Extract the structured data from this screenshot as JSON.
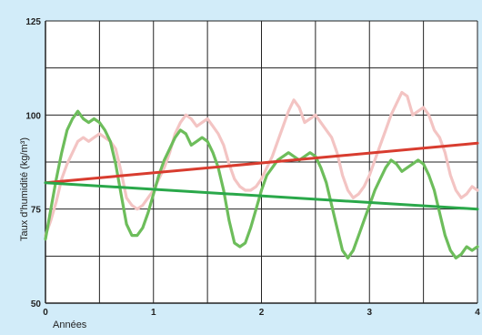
{
  "page": {
    "background": "#d2ecf9",
    "plot_background": "#ffffff",
    "grid_color": "#222222"
  },
  "chart_data": {
    "type": "line",
    "title": "",
    "xlabel": "Années",
    "ylabel": "Taux d'humidité (kg/m³)",
    "xlim": [
      0,
      4
    ],
    "ylim": [
      50,
      125
    ],
    "x_ticks": [
      0,
      1,
      2,
      3,
      4
    ],
    "y_ticks": [
      50,
      75,
      100,
      125
    ],
    "grid": true,
    "series": [
      {
        "color": "#f3c4c3",
        "style": "fluctuating",
        "points": [
          [
            0.0,
            68
          ],
          [
            0.05,
            72
          ],
          [
            0.1,
            77
          ],
          [
            0.15,
            83
          ],
          [
            0.2,
            87
          ],
          [
            0.25,
            90
          ],
          [
            0.3,
            93
          ],
          [
            0.35,
            94
          ],
          [
            0.4,
            93
          ],
          [
            0.45,
            94
          ],
          [
            0.5,
            95
          ],
          [
            0.55,
            94
          ],
          [
            0.6,
            93
          ],
          [
            0.65,
            91
          ],
          [
            0.7,
            85
          ],
          [
            0.75,
            78
          ],
          [
            0.8,
            76
          ],
          [
            0.85,
            75
          ],
          [
            0.9,
            76
          ],
          [
            0.95,
            78
          ],
          [
            1.0,
            80
          ],
          [
            1.05,
            83
          ],
          [
            1.1,
            86
          ],
          [
            1.15,
            90
          ],
          [
            1.2,
            95
          ],
          [
            1.25,
            98
          ],
          [
            1.3,
            100
          ],
          [
            1.35,
            99
          ],
          [
            1.4,
            97
          ],
          [
            1.45,
            98
          ],
          [
            1.5,
            99
          ],
          [
            1.55,
            97
          ],
          [
            1.6,
            95
          ],
          [
            1.65,
            92
          ],
          [
            1.7,
            87
          ],
          [
            1.75,
            83
          ],
          [
            1.8,
            81
          ],
          [
            1.85,
            80
          ],
          [
            1.9,
            80
          ],
          [
            1.95,
            81
          ],
          [
            2.0,
            83
          ],
          [
            2.05,
            86
          ],
          [
            2.1,
            89
          ],
          [
            2.15,
            93
          ],
          [
            2.2,
            97
          ],
          [
            2.25,
            101
          ],
          [
            2.3,
            104
          ],
          [
            2.35,
            102
          ],
          [
            2.4,
            98
          ],
          [
            2.45,
            99
          ],
          [
            2.5,
            100
          ],
          [
            2.55,
            98
          ],
          [
            2.6,
            96
          ],
          [
            2.65,
            94
          ],
          [
            2.7,
            90
          ],
          [
            2.75,
            84
          ],
          [
            2.8,
            80
          ],
          [
            2.85,
            78
          ],
          [
            2.9,
            79
          ],
          [
            2.95,
            81
          ],
          [
            3.0,
            84
          ],
          [
            3.05,
            88
          ],
          [
            3.1,
            92
          ],
          [
            3.15,
            96
          ],
          [
            3.2,
            100
          ],
          [
            3.25,
            103
          ],
          [
            3.3,
            106
          ],
          [
            3.35,
            105
          ],
          [
            3.4,
            100
          ],
          [
            3.45,
            101
          ],
          [
            3.5,
            102
          ],
          [
            3.55,
            100
          ],
          [
            3.6,
            96
          ],
          [
            3.65,
            94
          ],
          [
            3.7,
            90
          ],
          [
            3.75,
            84
          ],
          [
            3.8,
            80
          ],
          [
            3.85,
            78
          ],
          [
            3.9,
            79
          ],
          [
            3.95,
            81
          ],
          [
            4.0,
            80
          ]
        ]
      },
      {
        "color": "#6dbd5b",
        "style": "fluctuating",
        "points": [
          [
            0.0,
            67
          ],
          [
            0.05,
            75
          ],
          [
            0.1,
            83
          ],
          [
            0.15,
            90
          ],
          [
            0.2,
            96
          ],
          [
            0.25,
            99
          ],
          [
            0.3,
            101
          ],
          [
            0.35,
            99
          ],
          [
            0.4,
            98
          ],
          [
            0.45,
            99
          ],
          [
            0.5,
            98
          ],
          [
            0.55,
            96
          ],
          [
            0.6,
            93
          ],
          [
            0.65,
            87
          ],
          [
            0.7,
            79
          ],
          [
            0.75,
            71
          ],
          [
            0.8,
            68
          ],
          [
            0.85,
            68
          ],
          [
            0.9,
            70
          ],
          [
            0.95,
            74
          ],
          [
            1.0,
            79
          ],
          [
            1.05,
            84
          ],
          [
            1.1,
            88
          ],
          [
            1.15,
            91
          ],
          [
            1.2,
            94
          ],
          [
            1.25,
            96
          ],
          [
            1.3,
            95
          ],
          [
            1.35,
            92
          ],
          [
            1.4,
            93
          ],
          [
            1.45,
            94
          ],
          [
            1.5,
            93
          ],
          [
            1.55,
            90
          ],
          [
            1.6,
            86
          ],
          [
            1.65,
            80
          ],
          [
            1.7,
            72
          ],
          [
            1.75,
            66
          ],
          [
            1.8,
            65
          ],
          [
            1.85,
            66
          ],
          [
            1.9,
            70
          ],
          [
            1.95,
            75
          ],
          [
            2.0,
            80
          ],
          [
            2.05,
            84
          ],
          [
            2.1,
            86
          ],
          [
            2.15,
            88
          ],
          [
            2.2,
            89
          ],
          [
            2.25,
            90
          ],
          [
            2.3,
            89
          ],
          [
            2.35,
            88
          ],
          [
            2.4,
            89
          ],
          [
            2.45,
            90
          ],
          [
            2.5,
            89
          ],
          [
            2.55,
            86
          ],
          [
            2.6,
            82
          ],
          [
            2.65,
            76
          ],
          [
            2.7,
            70
          ],
          [
            2.75,
            64
          ],
          [
            2.8,
            62
          ],
          [
            2.85,
            64
          ],
          [
            2.9,
            68
          ],
          [
            2.95,
            72
          ],
          [
            3.0,
            76
          ],
          [
            3.05,
            80
          ],
          [
            3.1,
            83
          ],
          [
            3.15,
            86
          ],
          [
            3.2,
            88
          ],
          [
            3.25,
            87
          ],
          [
            3.3,
            85
          ],
          [
            3.35,
            86
          ],
          [
            3.4,
            87
          ],
          [
            3.45,
            88
          ],
          [
            3.5,
            87
          ],
          [
            3.55,
            84
          ],
          [
            3.6,
            80
          ],
          [
            3.65,
            74
          ],
          [
            3.7,
            68
          ],
          [
            3.75,
            64
          ],
          [
            3.8,
            62
          ],
          [
            3.85,
            63
          ],
          [
            3.9,
            65
          ],
          [
            3.95,
            64
          ],
          [
            4.0,
            65
          ]
        ]
      },
      {
        "color": "#d83c2f",
        "style": "trend",
        "points": [
          [
            0.0,
            82
          ],
          [
            4.0,
            92.5
          ]
        ]
      },
      {
        "color": "#2aa84a",
        "style": "trend",
        "points": [
          [
            0.0,
            82
          ],
          [
            4.0,
            75
          ]
        ]
      }
    ]
  }
}
